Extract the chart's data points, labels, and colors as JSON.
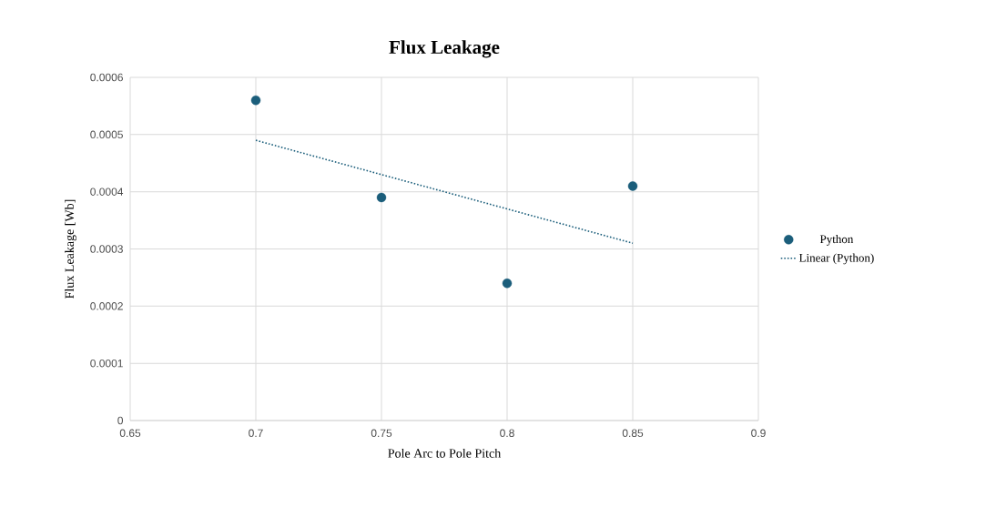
{
  "chart_data": {
    "type": "scatter",
    "title": "Flux Leakage",
    "xlabel": "Pole Arc to Pole Pitch",
    "ylabel": "Flux Leakage [Wb]",
    "x": [
      0.7,
      0.75,
      0.8,
      0.85
    ],
    "series": [
      {
        "name": "Python",
        "color": "#1b5e7b",
        "marker": "circle",
        "values": [
          0.00056,
          0.00039,
          0.00024,
          0.00041
        ]
      },
      {
        "name": "Linear (Python)",
        "type": "line",
        "color": "#1b5e7b",
        "line_style": "dotted",
        "marker": "none",
        "x": [
          0.7,
          0.85
        ],
        "values": [
          0.00049,
          0.00031
        ]
      }
    ],
    "xlim": [
      0.65,
      0.9
    ],
    "xticks": [
      0.65,
      0.7,
      0.75,
      0.8,
      0.85,
      0.9
    ],
    "ylim": [
      0,
      0.0006
    ],
    "yticks": [
      0,
      0.0001,
      0.0002,
      0.0003,
      0.0004,
      0.0005,
      0.0006
    ],
    "grid": true,
    "legend": "right"
  }
}
